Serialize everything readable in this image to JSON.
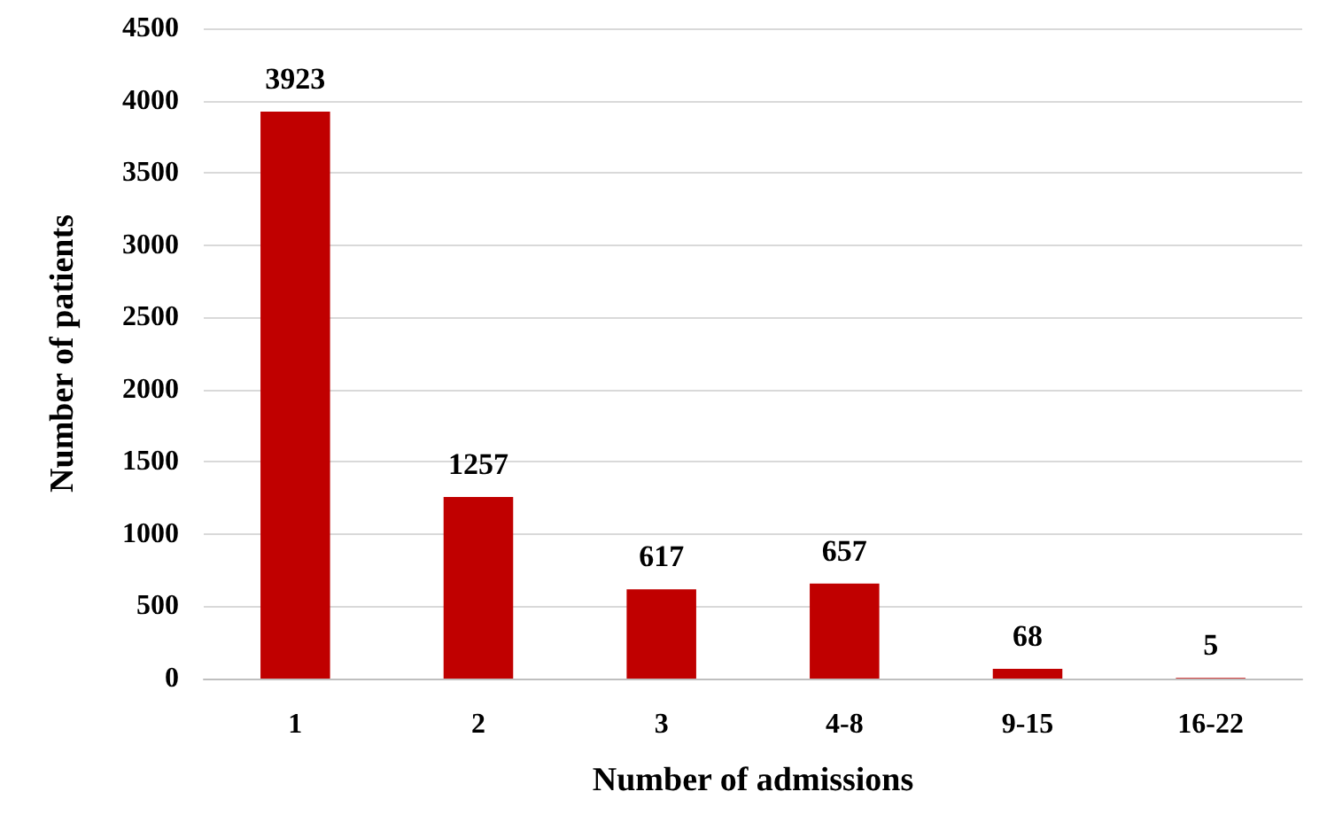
{
  "chart_data": {
    "type": "bar",
    "xlabel": "Number of admissions",
    "ylabel": "Number of patients",
    "categories": [
      "1",
      "2",
      "3",
      "4-8",
      "9-15",
      "16-22"
    ],
    "values": [
      3923,
      1257,
      617,
      657,
      68,
      5
    ],
    "color": "#c00000",
    "ylim": [
      0,
      4500
    ],
    "yticks": [
      0,
      500,
      1000,
      1500,
      2000,
      2500,
      3000,
      3500,
      4000,
      4500
    ],
    "grid": "y",
    "data_labels": true
  }
}
